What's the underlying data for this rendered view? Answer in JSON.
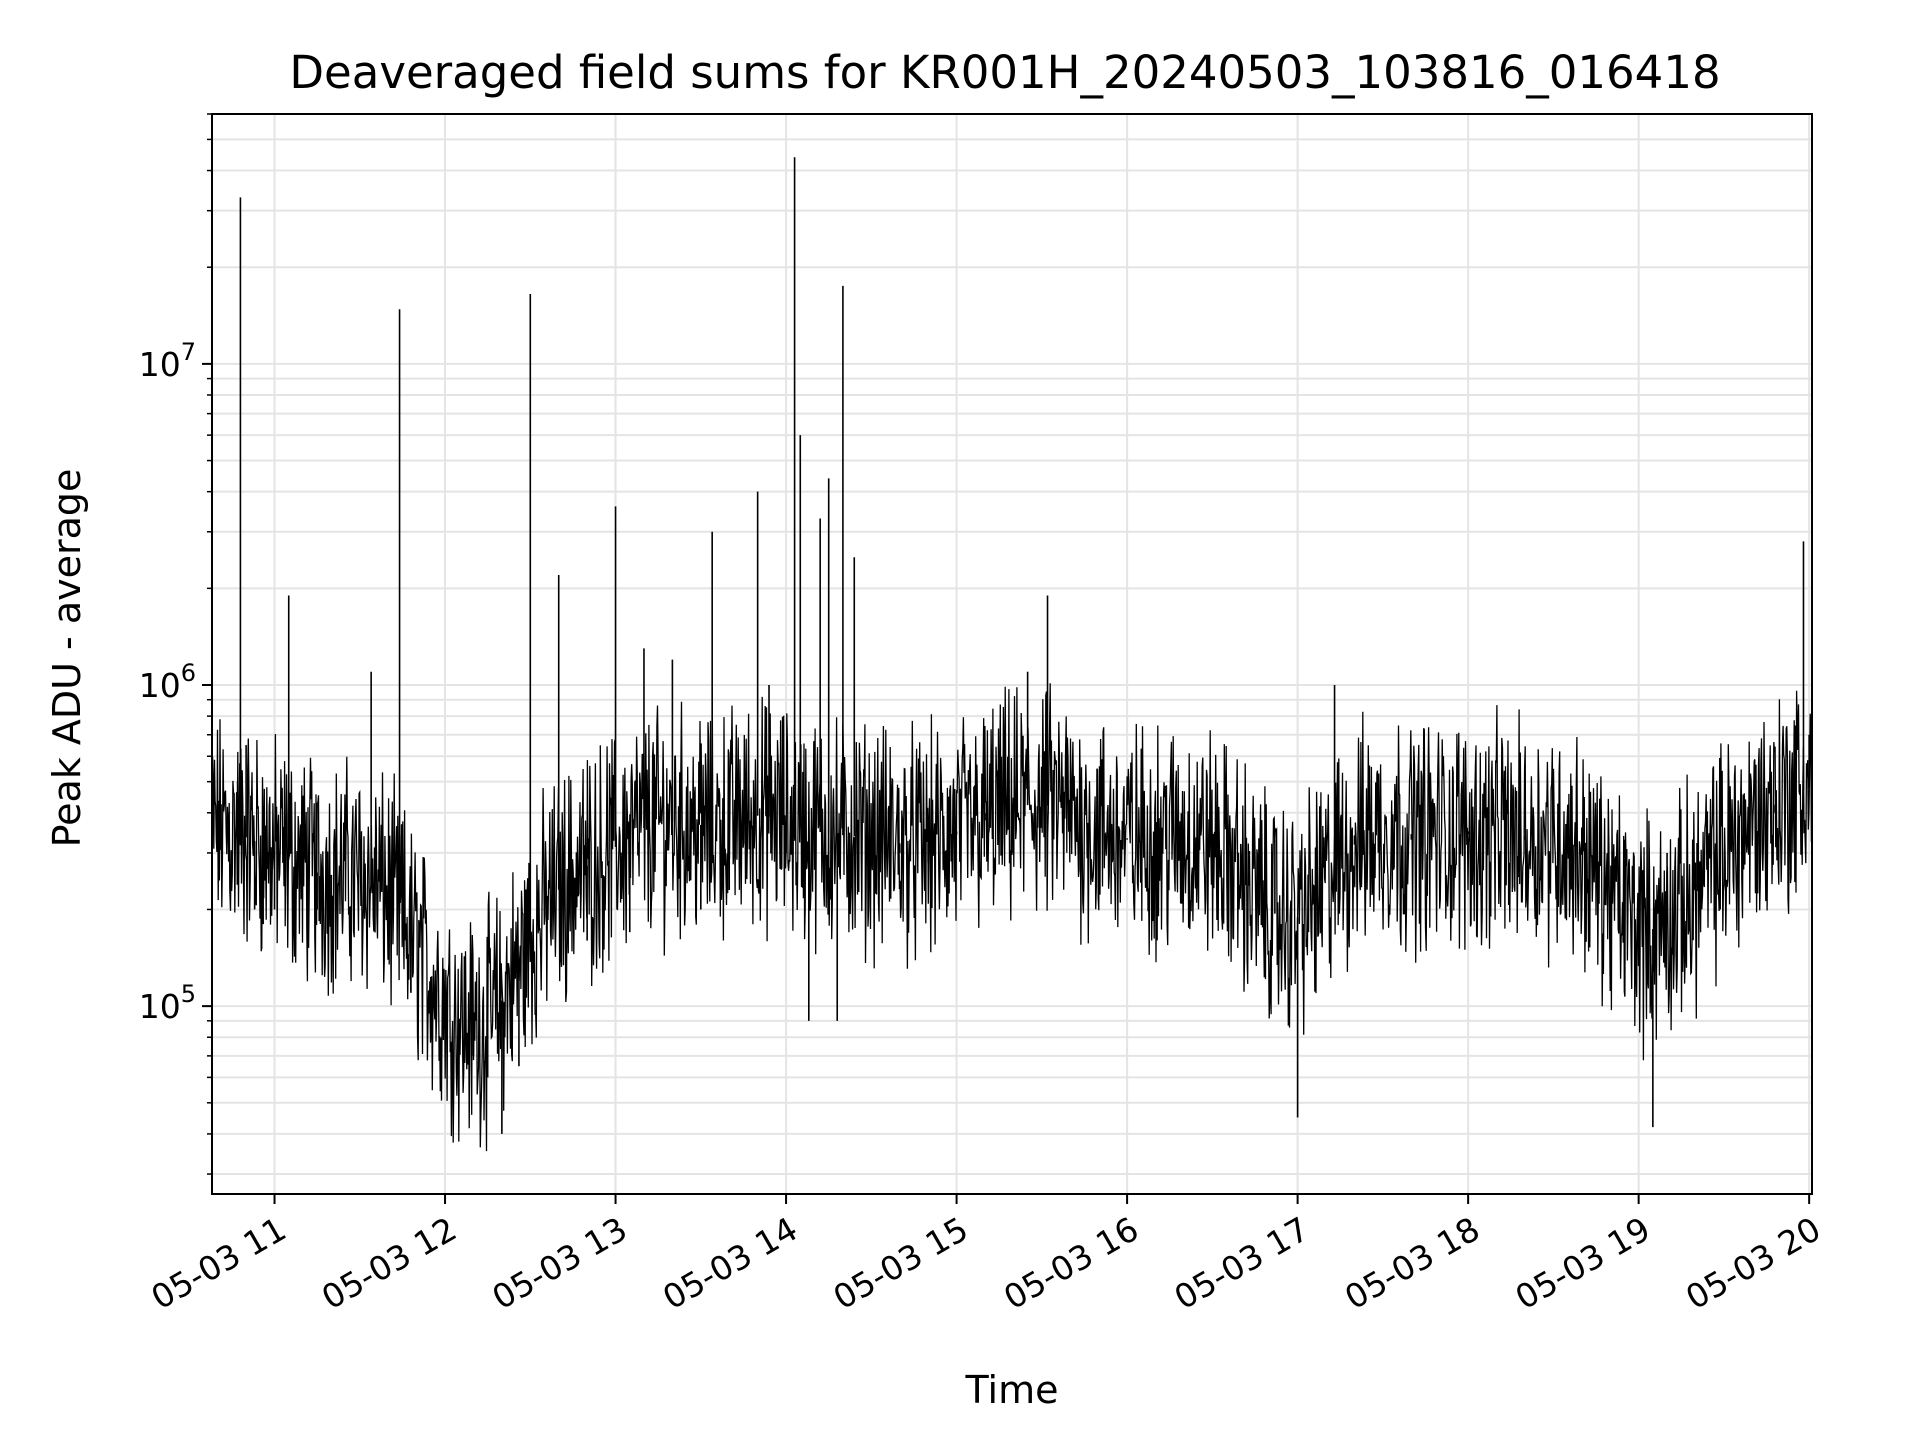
{
  "chart_data": {
    "type": "line",
    "title": "Deaveraged field sums for KR001H_20240503_103816_016418",
    "xlabel": "Time",
    "ylabel": "Peak ADU - average",
    "yscale": "log",
    "ylim": [
      26000,
      60000000
    ],
    "xlim": [
      "05-03 10:38",
      "05-03 20:01"
    ],
    "grid": true,
    "x_ticks": [
      "05-03 11",
      "05-03 12",
      "05-03 13",
      "05-03 14",
      "05-03 15",
      "05-03 16",
      "05-03 17",
      "05-03 18",
      "05-03 19",
      "05-03 20"
    ],
    "y_ticks": [
      {
        "base": "10",
        "exp": "5",
        "value": 100000
      },
      {
        "base": "10",
        "exp": "6",
        "value": 1000000
      },
      {
        "base": "10",
        "exp": "7",
        "value": 10000000
      }
    ],
    "series": [
      {
        "color": "#000000",
        "x": [
          "05-03 10:38",
          "05-03 10:44",
          "05-03 10:47",
          "05-03 10:48",
          "05-03 10:50",
          "05-03 10:53",
          "05-03 10:56",
          "05-03 11:00",
          "05-03 11:05",
          "05-03 11:10",
          "05-03 11:15",
          "05-03 11:20",
          "05-03 11:28",
          "05-03 11:34",
          "05-03 11:40",
          "05-03 11:44",
          "05-03 11:48",
          "05-03 11:55",
          "05-03 12:00",
          "05-03 12:05",
          "05-03 12:10",
          "05-03 12:15",
          "05-03 12:20",
          "05-03 12:26",
          "05-03 12:30",
          "05-03 12:35",
          "05-03 12:40",
          "05-03 12:45",
          "05-03 12:50",
          "05-03 13:00",
          "05-03 13:05",
          "05-03 13:10",
          "05-03 13:20",
          "05-03 13:30",
          "05-03 13:34",
          "05-03 13:40",
          "05-03 13:50",
          "05-03 13:54",
          "05-03 14:00",
          "05-03 14:03",
          "05-03 14:05",
          "05-03 14:08",
          "05-03 14:12",
          "05-03 14:15",
          "05-03 14:18",
          "05-03 14:20",
          "05-03 14:24",
          "05-03 14:30",
          "05-03 14:40",
          "05-03 14:50",
          "05-03 15:00",
          "05-03 15:10",
          "05-03 15:20",
          "05-03 15:25",
          "05-03 15:32",
          "05-03 15:40",
          "05-03 15:50",
          "05-03 16:00",
          "05-03 16:20",
          "05-03 16:40",
          "05-03 16:52",
          "05-03 17:00",
          "05-03 17:13",
          "05-03 17:20",
          "05-03 17:40",
          "05-03 18:00",
          "05-03 18:20",
          "05-03 18:40",
          "05-03 18:55",
          "05-03 19:05",
          "05-03 19:10",
          "05-03 19:20",
          "05-03 19:30",
          "05-03 19:40",
          "05-03 19:48",
          "05-03 19:55",
          "05-03 19:58",
          "05-03 20:00"
        ],
        "y": [
          300000,
          350000,
          500000,
          33000000,
          650000,
          200000,
          180000,
          200000,
          1900000,
          250000,
          200000,
          180000,
          220000,
          1100000,
          200000,
          14800000,
          110000,
          80000,
          85000,
          90000,
          70000,
          60000,
          40000,
          65000,
          16500000,
          250000,
          2200000,
          200000,
          160000,
          3600000,
          170000,
          1300000,
          1200000,
          200000,
          3000000,
          230000,
          4000000,
          1000000,
          300000,
          44000000,
          6000000,
          90000,
          3300000,
          4400000,
          90000,
          17500000,
          2500000,
          280000,
          300000,
          280000,
          350000,
          400000,
          300000,
          1100000,
          1900000,
          350000,
          300000,
          330000,
          350000,
          320000,
          330000,
          45000,
          1000000,
          340000,
          330000,
          350000,
          330000,
          360000,
          330000,
          42000,
          300000,
          280000,
          300000,
          330000,
          400000,
          450000,
          2800000,
          700000
        ]
      }
    ]
  }
}
